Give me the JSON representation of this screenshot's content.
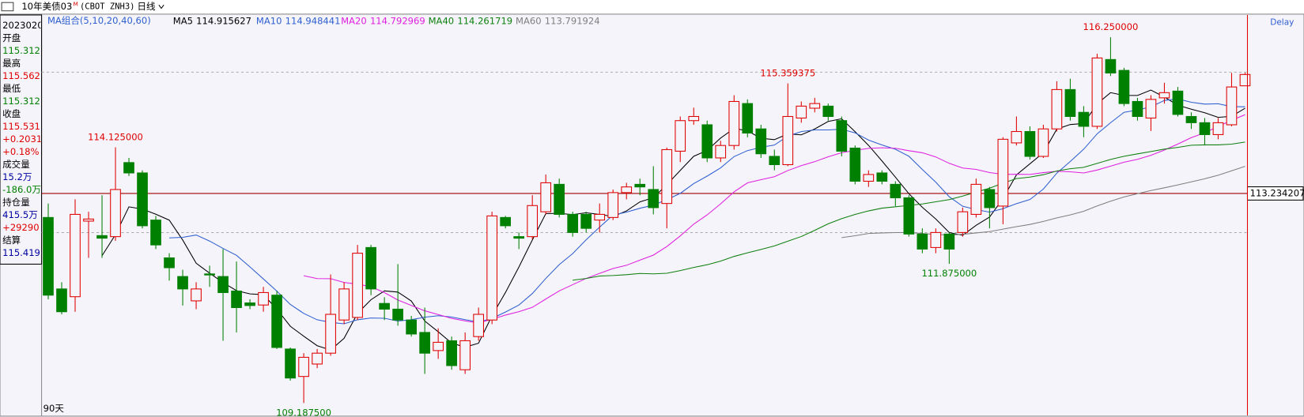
{
  "header": {
    "instrument": "10年美债03",
    "flag": "M",
    "code": "(CBOT ZNH3)",
    "period": "日线",
    "ma_group": "MA组合(5,10,20,40,60)",
    "delay": "Delay"
  },
  "info_panel": [
    {
      "text": "2023020",
      "color": "#000000"
    },
    {
      "text": "开盘",
      "color": "#000000"
    },
    {
      "text": "115.312",
      "color": "#008000"
    },
    {
      "text": "最高",
      "color": "#000000"
    },
    {
      "text": "115.562",
      "color": "#e00000"
    },
    {
      "text": "最低",
      "color": "#000000"
    },
    {
      "text": "115.312",
      "color": "#008000"
    },
    {
      "text": "收盘",
      "color": "#000000"
    },
    {
      "text": "115.531",
      "color": "#e00000"
    },
    {
      "text": "+0.2031",
      "color": "#e00000"
    },
    {
      "text": "+0.18%",
      "color": "#e00000"
    },
    {
      "text": "成交量",
      "color": "#000000"
    },
    {
      "text": "15.2万",
      "color": "#0000a0"
    },
    {
      "text": "-186.0万",
      "color": "#008000"
    },
    {
      "text": "持仓量",
      "color": "#000000"
    },
    {
      "text": "415.5万",
      "color": "#0000a0"
    },
    {
      "text": "+29290",
      "color": "#e00000"
    },
    {
      "text": "结算",
      "color": "#000000"
    },
    {
      "text": "115.419",
      "color": "#0000a0"
    }
  ],
  "chart_data": {
    "type": "candlestick",
    "span_label": "90天",
    "ylim": [
      108.95,
      116.68
    ],
    "up_color": "#e00000",
    "down_color": "#008000",
    "price_line": 113.234207,
    "price_line_color": "#a00000",
    "dashed_levels": [
      115.576,
      112.478
    ],
    "open": [
      112.77,
      111.39,
      111.24,
      112.7,
      112.42,
      112.4,
      113.83,
      113.63,
      112.72,
      111.99,
      111.63,
      111.16,
      111.68,
      111.63,
      111.35,
      111.12,
      111.08,
      111.27,
      110.23,
      109.7,
      109.94,
      110.15,
      110.79,
      110.84,
      112.19,
      111.11,
      111.0,
      110.79,
      110.55,
      110.2,
      110.39,
      109.83,
      110.47,
      110.79,
      112.77,
      112.4,
      112.4,
      112.88,
      113.41,
      112.83,
      112.83,
      112.72,
      112.77,
      113.25,
      113.41,
      113.31,
      113.04,
      114.05,
      114.64,
      114.56,
      113.92,
      114.16,
      114.97,
      114.48,
      113.95,
      113.79,
      114.69,
      114.88,
      114.92,
      114.64,
      114.11,
      113.47,
      113.63,
      113.41,
      113.15,
      112.45,
      112.19,
      112.45,
      112.48,
      112.83,
      113.31,
      112.99,
      114.21,
      114.43,
      113.95,
      114.48,
      115.24,
      114.8,
      114.53,
      115.82,
      115.61,
      115.01,
      114.69,
      115.08,
      115.21,
      114.72,
      114.6,
      114.37,
      114.56,
      115.3125
    ],
    "high": [
      113.04,
      111.52,
      113.12,
      112.88,
      113.2,
      114.125,
      113.92,
      113.68,
      112.8,
      112.08,
      111.76,
      111.52,
      111.84,
      112.16,
      111.92,
      111.19,
      111.43,
      111.35,
      110.26,
      110.15,
      110.23,
      111.67,
      111.52,
      112.24,
      112.24,
      111.23,
      111.87,
      110.87,
      111.03,
      110.63,
      110.47,
      110.55,
      111.03,
      112.88,
      112.8,
      112.48,
      113.2,
      113.6,
      113.52,
      112.88,
      112.88,
      113.04,
      113.31,
      113.44,
      113.52,
      113.76,
      114.12,
      114.72,
      114.89,
      114.64,
      114.25,
      115.13,
      115.05,
      114.56,
      114.08,
      115.359375,
      115.01,
      115.08,
      114.97,
      114.72,
      114.16,
      113.68,
      113.68,
      113.47,
      113.2,
      112.56,
      112.56,
      112.48,
      112.96,
      113.52,
      113.36,
      114.32,
      114.72,
      114.53,
      114.56,
      115.4,
      115.45,
      114.92,
      115.93,
      116.25,
      115.66,
      115.08,
      115.13,
      115.37,
      115.29,
      114.8,
      114.69,
      114.69,
      115.56,
      115.5625
    ],
    "low": [
      111.19,
      110.9,
      110.95,
      111.99,
      111.99,
      112.32,
      113.57,
      112.56,
      112.16,
      111.55,
      111.07,
      111.0,
      111.43,
      110.39,
      110.55,
      111.0,
      110.95,
      110.23,
      109.62,
      109.1875,
      109.86,
      110.1,
      110.71,
      110.79,
      111.27,
      110.79,
      110.68,
      110.47,
      109.75,
      110.04,
      109.83,
      109.75,
      110.39,
      110.71,
      112.56,
      112.16,
      112.35,
      112.83,
      112.77,
      112.4,
      112.48,
      112.48,
      112.72,
      113.12,
      113.2,
      112.83,
      112.56,
      113.84,
      114.56,
      113.84,
      113.84,
      114.08,
      114.32,
      113.92,
      113.68,
      113.76,
      114.6,
      114.8,
      114.64,
      113.95,
      113.41,
      113.36,
      113.41,
      112.99,
      112.4,
      112.08,
      112.08,
      111.875,
      112.4,
      112.77,
      112.56,
      112.64,
      114.16,
      113.89,
      113.92,
      114.43,
      114.64,
      114.32,
      114.48,
      115.5,
      114.92,
      114.64,
      114.44,
      114.97,
      114.72,
      114.48,
      114.16,
      114.28,
      114.53,
      115.3125
    ],
    "close": [
      111.27,
      110.95,
      112.83,
      112.74,
      112.37,
      113.31,
      113.63,
      112.61,
      112.24,
      111.8,
      111.39,
      111.39,
      111.66,
      111.32,
      111.03,
      111.07,
      111.32,
      110.26,
      109.67,
      110.07,
      110.15,
      110.9,
      111.39,
      112.08,
      111.39,
      111.0,
      110.79,
      110.52,
      110.15,
      110.36,
      109.91,
      110.39,
      110.9,
      112.8,
      112.61,
      112.37,
      113.0,
      113.44,
      112.83,
      112.48,
      112.56,
      112.83,
      113.25,
      113.36,
      113.36,
      112.96,
      114.08,
      114.64,
      114.72,
      113.92,
      114.16,
      115.01,
      114.4,
      114.0,
      113.79,
      114.72,
      114.92,
      114.97,
      114.72,
      114.05,
      113.47,
      113.6,
      113.47,
      113.15,
      112.45,
      112.16,
      112.48,
      112.16,
      112.88,
      113.41,
      112.96,
      114.28,
      114.43,
      113.95,
      114.48,
      115.24,
      114.72,
      114.53,
      115.85,
      115.56,
      114.97,
      114.72,
      115.05,
      115.18,
      114.76,
      114.6,
      114.37,
      114.6,
      115.29,
      115.53125
    ],
    "annotations": [
      {
        "label": "116.250000",
        "value": 116.25
      },
      {
        "label": "115.359375",
        "value": 115.359375
      },
      {
        "label": "114.125000",
        "value": 114.125
      },
      {
        "label": "111.875000",
        "value": 111.875
      },
      {
        "label": "109.187500",
        "value": 109.1875
      }
    ],
    "moving_averages": [
      {
        "name": "MA5",
        "value": 114.915627,
        "color": "#000000"
      },
      {
        "name": "MA10",
        "value": 114.948441,
        "color": "#2f5fd0"
      },
      {
        "name": "MA20",
        "value": 114.792969,
        "color": "#e020e0"
      },
      {
        "name": "MA40",
        "value": 114.261719,
        "color": "#108010"
      },
      {
        "name": "MA60",
        "value": 113.791924,
        "color": "#808080"
      }
    ]
  }
}
